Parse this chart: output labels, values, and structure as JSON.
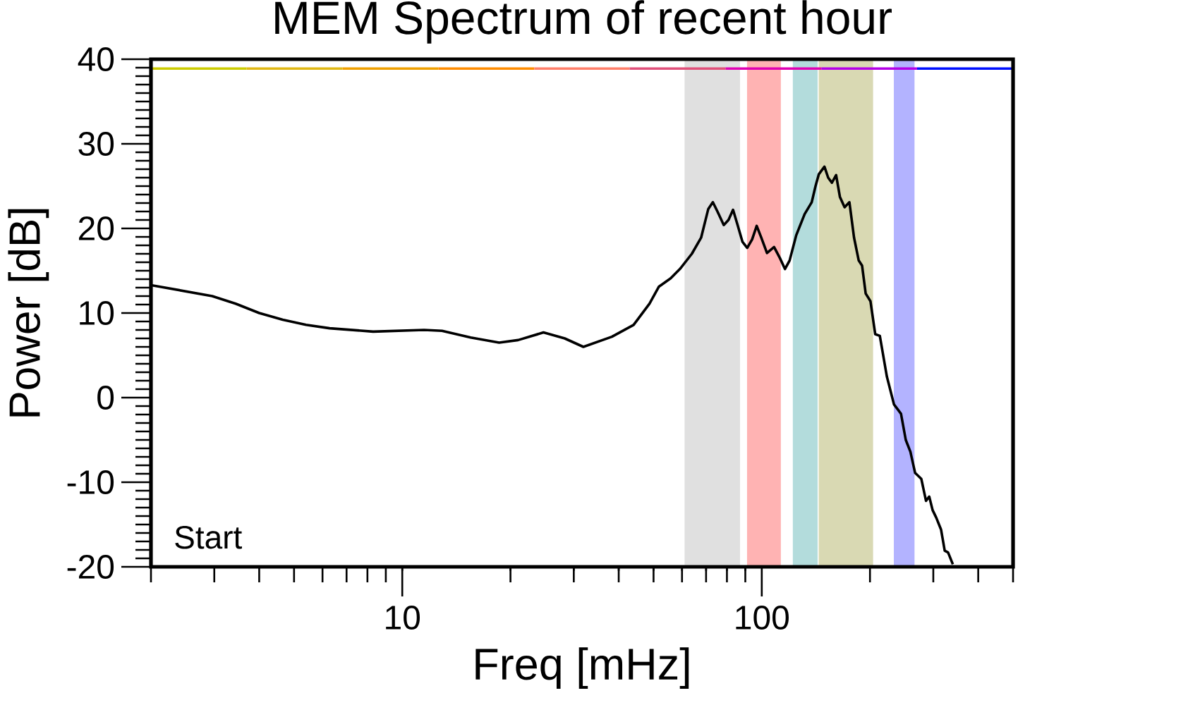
{
  "chart_data": {
    "type": "line",
    "title": "MEM Spectrum of recent hour",
    "xlabel": "Freq [mHz]",
    "ylabel": "Power [dB]",
    "log": "x",
    "xlim": [
      2,
      500
    ],
    "ylim": [
      -20,
      40
    ],
    "xticks": [
      10,
      100,
      {
        "value": 2,
        "label": null
      },
      {
        "value": 3,
        "label": null
      },
      {
        "value": 4,
        "label": null
      },
      {
        "value": 5,
        "label": null
      },
      {
        "value": 6,
        "label": null
      },
      {
        "value": 7,
        "label": null
      },
      {
        "value": 8,
        "label": null
      },
      {
        "value": 9,
        "label": null
      },
      {
        "value": 20,
        "label": null
      },
      {
        "value": 30,
        "label": null
      },
      {
        "value": 40,
        "label": null
      },
      {
        "value": 50,
        "label": null
      },
      {
        "value": 60,
        "label": null
      },
      {
        "value": 70,
        "label": null
      },
      {
        "value": 80,
        "label": null
      },
      {
        "value": 90,
        "label": null
      },
      {
        "value": 200,
        "label": null
      },
      {
        "value": 300,
        "label": null
      },
      {
        "value": 400,
        "label": null
      },
      {
        "value": 500,
        "label": null
      }
    ],
    "yticks": [
      -20,
      -10,
      0,
      10,
      20,
      30,
      40,
      {
        "value": -19,
        "label": null
      },
      {
        "value": -18,
        "label": null
      },
      {
        "value": -17,
        "label": null
      },
      {
        "value": -16,
        "label": null
      },
      {
        "value": -15,
        "label": null
      },
      {
        "value": -14,
        "label": null
      },
      {
        "value": -13,
        "label": null
      },
      {
        "value": -12,
        "label": null
      },
      {
        "value": -11,
        "label": null
      },
      {
        "value": -9,
        "label": null
      },
      {
        "value": -8,
        "label": null
      },
      {
        "value": -7,
        "label": null
      },
      {
        "value": -6,
        "label": null
      },
      {
        "value": -5,
        "label": null
      },
      {
        "value": -4,
        "label": null
      },
      {
        "value": -3,
        "label": null
      },
      {
        "value": -2,
        "label": null
      },
      {
        "value": -1,
        "label": null
      },
      {
        "value": 1,
        "label": null
      },
      {
        "value": 2,
        "label": null
      },
      {
        "value": 3,
        "label": null
      },
      {
        "value": 4,
        "label": null
      },
      {
        "value": 5,
        "label": null
      },
      {
        "value": 6,
        "label": null
      },
      {
        "value": 7,
        "label": null
      },
      {
        "value": 8,
        "label": null
      },
      {
        "value": 9,
        "label": null
      },
      {
        "value": 11,
        "label": null
      },
      {
        "value": 12,
        "label": null
      },
      {
        "value": 13,
        "label": null
      },
      {
        "value": 14,
        "label": null
      },
      {
        "value": 15,
        "label": null
      },
      {
        "value": 16,
        "label": null
      },
      {
        "value": 17,
        "label": null
      },
      {
        "value": 18,
        "label": null
      },
      {
        "value": 19,
        "label": null
      },
      {
        "value": 21,
        "label": null
      },
      {
        "value": 22,
        "label": null
      },
      {
        "value": 23,
        "label": null
      },
      {
        "value": 24,
        "label": null
      },
      {
        "value": 25,
        "label": null
      },
      {
        "value": 26,
        "label": null
      },
      {
        "value": 27,
        "label": null
      },
      {
        "value": 28,
        "label": null
      },
      {
        "value": 29,
        "label": null
      },
      {
        "value": 31,
        "label": null
      },
      {
        "value": 32,
        "label": null
      },
      {
        "value": 33,
        "label": null
      },
      {
        "value": 34,
        "label": null
      },
      {
        "value": 35,
        "label": null
      },
      {
        "value": 36,
        "label": null
      },
      {
        "value": 37,
        "label": null
      },
      {
        "value": 38,
        "label": null
      },
      {
        "value": 39,
        "label": null
      }
    ],
    "bands": [
      {
        "axis": "x",
        "from": 61,
        "to": 87,
        "color": "#e0e0e0"
      },
      {
        "axis": "x",
        "from": 91,
        "to": 113,
        "color": "#ffb3b3"
      },
      {
        "axis": "x",
        "from": 122,
        "to": 143,
        "color": "#b3dcdc"
      },
      {
        "axis": "x",
        "from": 144,
        "to": 204,
        "color": "#d9d9b3"
      },
      {
        "axis": "x",
        "from": 233,
        "to": 266,
        "color": "#b3b3ff"
      }
    ],
    "series": [
      {
        "type": "line",
        "color": "#cccc00",
        "x": [
          2,
          3.69
        ],
        "values": [
          38.9,
          38.9
        ]
      },
      {
        "type": "line",
        "color": "#e0b814",
        "x": [
          3.69,
          6.82
        ],
        "values": [
          38.9,
          38.9
        ]
      },
      {
        "type": "line",
        "color": "#f0a000",
        "x": [
          6.82,
          12.6
        ],
        "values": [
          38.9,
          38.9
        ]
      },
      {
        "type": "line",
        "color": "#ff8c00",
        "x": [
          12.6,
          23.3
        ],
        "values": [
          38.9,
          38.9
        ]
      },
      {
        "type": "line",
        "color": "#ff7f6a",
        "x": [
          23.3,
          42.9
        ],
        "values": [
          38.9,
          38.9
        ]
      },
      {
        "type": "line",
        "color": "#e0507a",
        "x": [
          42.9,
          79.3
        ],
        "values": [
          38.9,
          38.9
        ]
      },
      {
        "type": "line",
        "color": "#e000b4",
        "x": [
          79.3,
          146.5
        ],
        "values": [
          38.9,
          38.9
        ]
      },
      {
        "type": "line",
        "color": "#b400e8",
        "x": [
          146.5,
          270.4
        ],
        "values": [
          38.9,
          38.9
        ]
      },
      {
        "type": "line",
        "color": "#0010ff",
        "x": [
          270.4,
          500
        ],
        "values": [
          38.9,
          38.9
        ]
      },
      {
        "type": "line",
        "color": "#000000",
        "x": [
          2.0,
          2.96,
          3.44,
          4.0,
          4.65,
          5.4,
          6.28,
          8.3,
          11.5,
          12.9,
          15.5,
          18.6,
          21,
          24.7,
          28.3,
          31.9,
          38.3,
          44,
          48.7,
          51.7,
          55.8,
          59.2,
          63.9,
          67.8,
          71,
          73.1,
          75.3,
          78.4,
          80.8,
          83.2,
          85.8,
          88.4,
          91.1,
          94,
          96.8,
          99.7,
          103.4,
          108.2,
          112.6,
          116,
          119.5,
          124.7,
          131.6,
          137.7,
          141.1,
          144.1,
          149.4,
          153,
          156.7,
          161,
          165,
          170,
          175.3,
          180.6,
          186.1,
          190.1,
          194.6,
          200.6,
          206.8,
          213,
          222.8,
          233.2,
          243.9,
          251.5,
          259.1,
          267,
          277.8,
          286.3,
          292.3,
          298.7,
          305.8,
          315.3,
          322.8,
          329.8,
          340
        ],
        "values": [
          13.3,
          12.0,
          11.1,
          10.0,
          9.2,
          8.6,
          8.2,
          7.8,
          8.0,
          7.9,
          7.1,
          6.5,
          6.8,
          7.7,
          7.0,
          6.0,
          7.2,
          8.6,
          11.1,
          13.1,
          14.1,
          15.2,
          17.0,
          18.9,
          22.3,
          23.1,
          22.0,
          20.4,
          21.0,
          22.2,
          20.3,
          18.4,
          17.7,
          18.7,
          20.3,
          18.9,
          17.1,
          17.8,
          16.4,
          15.2,
          16.2,
          19.2,
          21.7,
          23.1,
          25.0,
          26.4,
          27.3,
          26.0,
          25.4,
          26.3,
          23.7,
          22.5,
          23.1,
          18.9,
          16.2,
          15.6,
          12.3,
          11.4,
          7.5,
          7.3,
          2.5,
          -0.8,
          -1.9,
          -5.0,
          -6.4,
          -8.9,
          -9.6,
          -12.2,
          -11.7,
          -13.3,
          -14.2,
          -15.6,
          -18.1,
          -18.3,
          -19.7
        ]
      }
    ],
    "annotations": [
      "Start"
    ]
  }
}
